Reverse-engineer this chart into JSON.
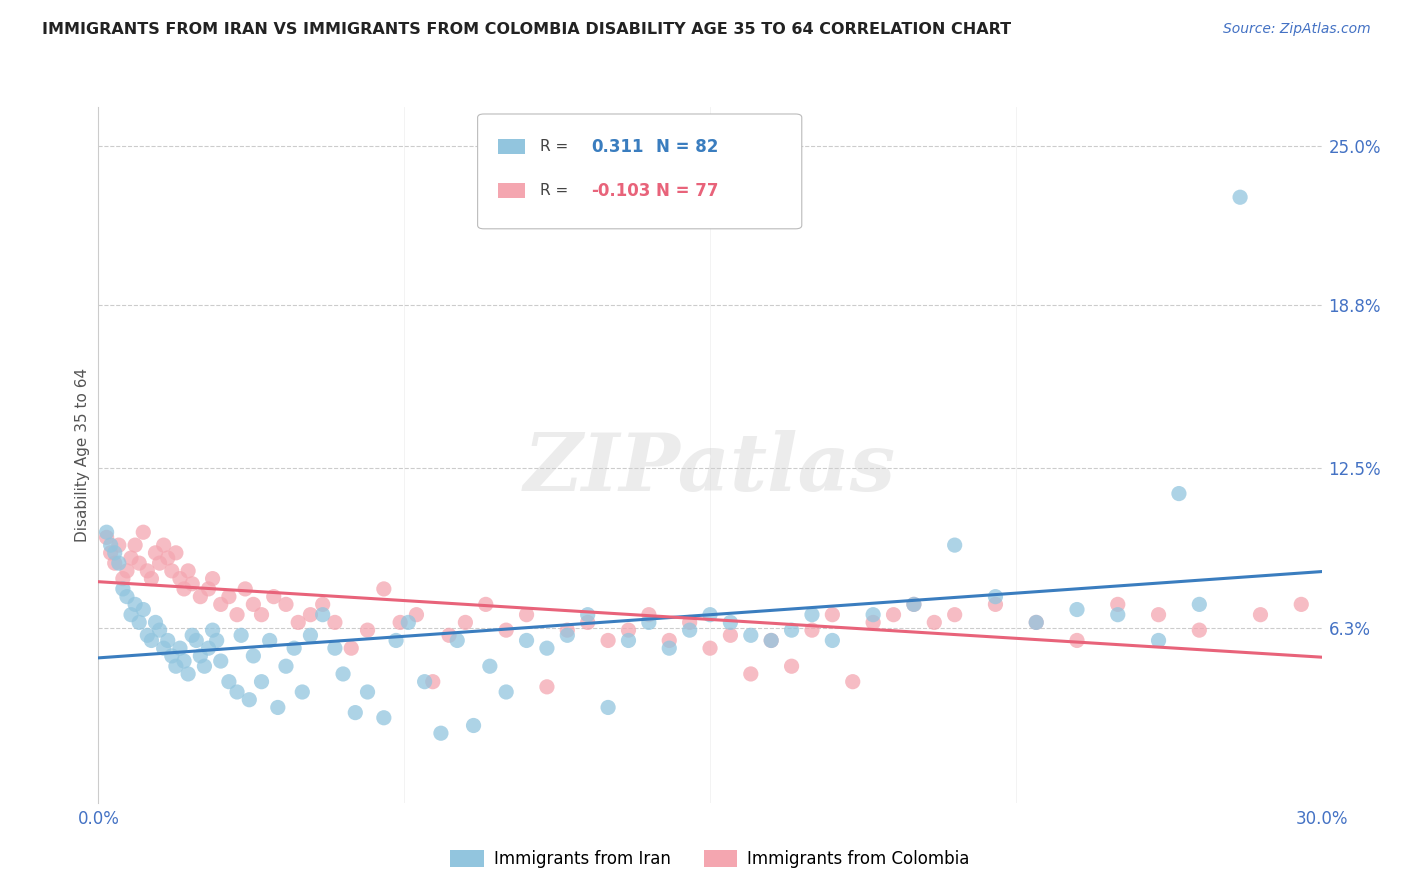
{
  "title": "IMMIGRANTS FROM IRAN VS IMMIGRANTS FROM COLOMBIA DISABILITY AGE 35 TO 64 CORRELATION CHART",
  "source": "Source: ZipAtlas.com",
  "ylabel": "Disability Age 35 to 64",
  "xlim": [
    0.0,
    0.3
  ],
  "ylim": [
    -0.005,
    0.265
  ],
  "ytick_labels": [
    "6.3%",
    "12.5%",
    "18.8%",
    "25.0%"
  ],
  "ytick_values": [
    0.063,
    0.125,
    0.188,
    0.25
  ],
  "iran_color": "#92c5de",
  "colombia_color": "#f4a6b0",
  "iran_line_color": "#3a7dbf",
  "colombia_line_color": "#e8637a",
  "iran_R": "0.311",
  "iran_N": "82",
  "colombia_R": "-0.103",
  "colombia_N": "77",
  "watermark": "ZIPatlas",
  "background_color": "#ffffff",
  "iran_scatter_x": [
    0.002,
    0.003,
    0.004,
    0.005,
    0.006,
    0.007,
    0.008,
    0.009,
    0.01,
    0.011,
    0.012,
    0.013,
    0.014,
    0.015,
    0.016,
    0.017,
    0.018,
    0.019,
    0.02,
    0.021,
    0.022,
    0.023,
    0.024,
    0.025,
    0.026,
    0.027,
    0.028,
    0.029,
    0.03,
    0.032,
    0.034,
    0.035,
    0.037,
    0.038,
    0.04,
    0.042,
    0.044,
    0.046,
    0.048,
    0.05,
    0.052,
    0.055,
    0.058,
    0.06,
    0.063,
    0.066,
    0.07,
    0.073,
    0.076,
    0.08,
    0.084,
    0.088,
    0.092,
    0.096,
    0.1,
    0.105,
    0.11,
    0.115,
    0.12,
    0.125,
    0.13,
    0.135,
    0.14,
    0.145,
    0.15,
    0.155,
    0.16,
    0.165,
    0.17,
    0.175,
    0.18,
    0.19,
    0.2,
    0.21,
    0.22,
    0.23,
    0.24,
    0.25,
    0.26,
    0.265,
    0.27,
    0.28
  ],
  "iran_scatter_y": [
    0.1,
    0.095,
    0.092,
    0.088,
    0.078,
    0.075,
    0.068,
    0.072,
    0.065,
    0.07,
    0.06,
    0.058,
    0.065,
    0.062,
    0.055,
    0.058,
    0.052,
    0.048,
    0.055,
    0.05,
    0.045,
    0.06,
    0.058,
    0.052,
    0.048,
    0.055,
    0.062,
    0.058,
    0.05,
    0.042,
    0.038,
    0.06,
    0.035,
    0.052,
    0.042,
    0.058,
    0.032,
    0.048,
    0.055,
    0.038,
    0.06,
    0.068,
    0.055,
    0.045,
    0.03,
    0.038,
    0.028,
    0.058,
    0.065,
    0.042,
    0.022,
    0.058,
    0.025,
    0.048,
    0.038,
    0.058,
    0.055,
    0.06,
    0.068,
    0.032,
    0.058,
    0.065,
    0.055,
    0.062,
    0.068,
    0.065,
    0.06,
    0.058,
    0.062,
    0.068,
    0.058,
    0.068,
    0.072,
    0.095,
    0.075,
    0.065,
    0.07,
    0.068,
    0.058,
    0.115,
    0.072,
    0.23
  ],
  "colombia_scatter_x": [
    0.002,
    0.003,
    0.004,
    0.005,
    0.006,
    0.007,
    0.008,
    0.009,
    0.01,
    0.011,
    0.012,
    0.013,
    0.014,
    0.015,
    0.016,
    0.017,
    0.018,
    0.019,
    0.02,
    0.021,
    0.022,
    0.023,
    0.025,
    0.027,
    0.028,
    0.03,
    0.032,
    0.034,
    0.036,
    0.038,
    0.04,
    0.043,
    0.046,
    0.049,
    0.052,
    0.055,
    0.058,
    0.062,
    0.066,
    0.07,
    0.074,
    0.078,
    0.082,
    0.086,
    0.09,
    0.095,
    0.1,
    0.105,
    0.11,
    0.115,
    0.12,
    0.125,
    0.13,
    0.135,
    0.14,
    0.145,
    0.15,
    0.155,
    0.16,
    0.165,
    0.17,
    0.175,
    0.18,
    0.185,
    0.19,
    0.195,
    0.2,
    0.205,
    0.21,
    0.22,
    0.23,
    0.24,
    0.25,
    0.26,
    0.27,
    0.285,
    0.295
  ],
  "colombia_scatter_y": [
    0.098,
    0.092,
    0.088,
    0.095,
    0.082,
    0.085,
    0.09,
    0.095,
    0.088,
    0.1,
    0.085,
    0.082,
    0.092,
    0.088,
    0.095,
    0.09,
    0.085,
    0.092,
    0.082,
    0.078,
    0.085,
    0.08,
    0.075,
    0.078,
    0.082,
    0.072,
    0.075,
    0.068,
    0.078,
    0.072,
    0.068,
    0.075,
    0.072,
    0.065,
    0.068,
    0.072,
    0.065,
    0.055,
    0.062,
    0.078,
    0.065,
    0.068,
    0.042,
    0.06,
    0.065,
    0.072,
    0.062,
    0.068,
    0.04,
    0.062,
    0.065,
    0.058,
    0.062,
    0.068,
    0.058,
    0.065,
    0.055,
    0.06,
    0.045,
    0.058,
    0.048,
    0.062,
    0.068,
    0.042,
    0.065,
    0.068,
    0.072,
    0.065,
    0.068,
    0.072,
    0.065,
    0.058,
    0.072,
    0.068,
    0.062,
    0.068,
    0.072
  ]
}
